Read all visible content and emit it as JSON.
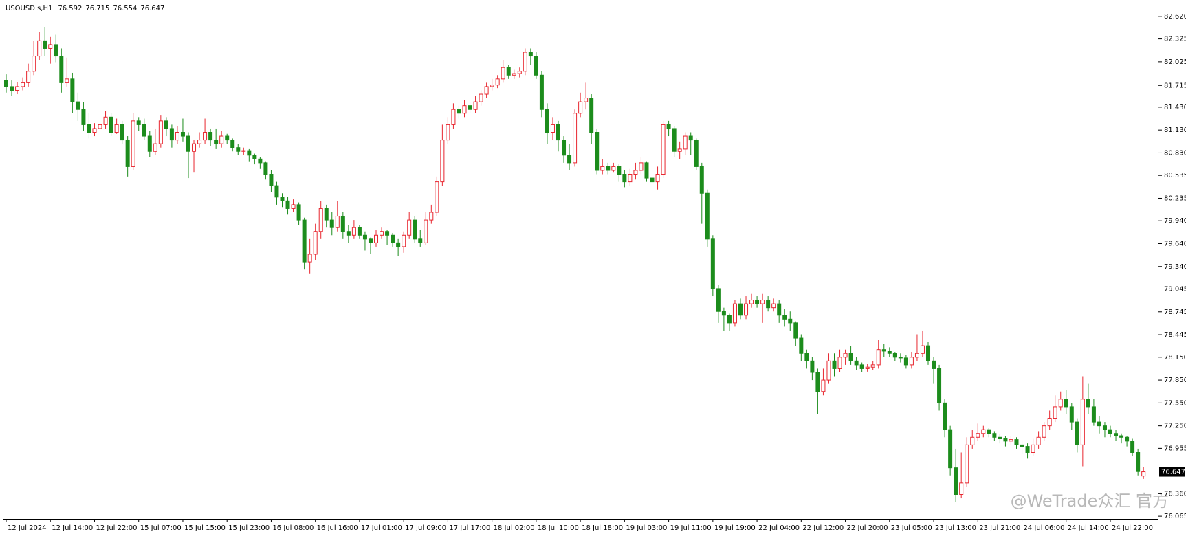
{
  "chart_data": {
    "type": "candlestick",
    "header": "USOUSD.s,H1",
    "watermark": "@WeTrade众汇 官方",
    "up_color": "#e8262f",
    "down_color": "#1c8c1c",
    "ylim": [
      76.03,
      82.79
    ],
    "yticks": [
      {
        "value": 82.62,
        "label": "82.620"
      },
      82.325,
      82.025,
      81.715,
      {
        "value": 81.43,
        "label": "81.430"
      },
      {
        "value": 81.13,
        "label": "81.130"
      },
      {
        "value": 80.83,
        "label": "80.830"
      },
      80.535,
      80.235,
      {
        "value": 79.94,
        "label": "79.940"
      },
      {
        "value": 79.64,
        "label": "79.640"
      },
      {
        "value": 79.34,
        "label": "79.340"
      },
      79.045,
      78.745,
      78.445,
      {
        "value": 78.15,
        "label": "78.150"
      },
      {
        "value": 77.85,
        "label": "77.850"
      },
      {
        "value": 77.55,
        "label": "77.550"
      },
      {
        "value": 77.25,
        "label": "77.250"
      },
      76.955,
      {
        "value": 76.36,
        "label": "76.360"
      },
      76.065
    ],
    "categories": [
      "12 Jul 2024",
      null,
      null,
      null,
      null,
      null,
      null,
      null,
      "12 Jul 14:00",
      null,
      null,
      null,
      null,
      null,
      null,
      null,
      "12 Jul 22:00",
      null,
      null,
      null,
      null,
      null,
      null,
      null,
      "15 Jul 07:00",
      null,
      null,
      null,
      null,
      null,
      null,
      null,
      "15 Jul 15:00",
      null,
      null,
      null,
      null,
      null,
      null,
      null,
      "15 Jul 23:00",
      null,
      null,
      null,
      null,
      null,
      null,
      null,
      "16 Jul 08:00",
      null,
      null,
      null,
      null,
      null,
      null,
      null,
      "16 Jul 16:00",
      null,
      null,
      null,
      null,
      null,
      null,
      null,
      "17 Jul 01:00",
      null,
      null,
      null,
      null,
      null,
      null,
      null,
      "17 Jul 09:00",
      null,
      null,
      null,
      null,
      null,
      null,
      null,
      "17 Jul 17:00",
      null,
      null,
      null,
      null,
      null,
      null,
      null,
      "18 Jul 02:00",
      null,
      null,
      null,
      null,
      null,
      null,
      null,
      "18 Jul 10:00",
      null,
      null,
      null,
      null,
      null,
      null,
      null,
      "18 Jul 18:00",
      null,
      null,
      null,
      null,
      null,
      null,
      null,
      "19 Jul 03:00",
      null,
      null,
      null,
      null,
      null,
      null,
      null,
      "19 Jul 11:00",
      null,
      null,
      null,
      null,
      null,
      null,
      null,
      "19 Jul 19:00",
      null,
      null,
      null,
      null,
      null,
      null,
      null,
      "22 Jul 04:00",
      null,
      null,
      null,
      null,
      null,
      null,
      null,
      "22 Jul 12:00",
      null,
      null,
      null,
      null,
      null,
      null,
      null,
      "22 Jul 20:00",
      null,
      null,
      null,
      null,
      null,
      null,
      null,
      "23 Jul 05:00",
      null,
      null,
      null,
      null,
      null,
      null,
      null,
      "23 Jul 13:00",
      null,
      null,
      null,
      null,
      null,
      null,
      null,
      "23 Jul 21:00",
      null,
      null,
      null,
      null,
      null,
      null,
      null,
      "24 Jul 06:00",
      null,
      null,
      null,
      null,
      null,
      null,
      null,
      "24 Jul 14:00",
      null,
      null,
      null,
      null,
      null,
      null,
      null,
      "24 Jul 22:00",
      null,
      null,
      null,
      null,
      null,
      null
    ],
    "candles": [
      [
        81.78,
        81.86,
        81.62,
        81.7
      ],
      [
        81.7,
        81.78,
        81.58,
        81.65
      ],
      [
        81.65,
        81.76,
        81.6,
        81.7
      ],
      [
        81.7,
        81.82,
        81.65,
        81.75
      ],
      [
        81.75,
        82.0,
        81.7,
        81.9
      ],
      [
        81.9,
        82.3,
        81.85,
        82.1
      ],
      [
        82.1,
        82.42,
        82.05,
        82.3
      ],
      [
        82.3,
        82.48,
        82.1,
        82.2
      ],
      [
        82.2,
        82.35,
        82.0,
        82.25
      ],
      [
        82.25,
        82.38,
        82.02,
        82.1
      ],
      [
        82.1,
        82.2,
        81.62,
        81.75
      ],
      [
        81.75,
        82.08,
        81.7,
        81.8
      ],
      [
        81.8,
        81.88,
        81.35,
        81.5
      ],
      [
        81.5,
        81.62,
        81.25,
        81.4
      ],
      [
        81.4,
        81.5,
        81.12,
        81.2
      ],
      [
        81.2,
        81.35,
        81.02,
        81.1
      ],
      [
        81.1,
        81.22,
        81.05,
        81.15
      ],
      [
        81.15,
        81.42,
        81.1,
        81.2
      ],
      [
        81.2,
        81.38,
        81.15,
        81.3
      ],
      [
        81.3,
        81.35,
        81.05,
        81.1
      ],
      [
        81.1,
        81.28,
        81.08,
        81.2
      ],
      [
        81.2,
        81.25,
        80.95,
        81.0
      ],
      [
        81.0,
        81.05,
        80.52,
        80.65
      ],
      [
        80.65,
        81.35,
        80.6,
        81.25
      ],
      [
        81.25,
        81.3,
        81.12,
        81.2
      ],
      [
        81.2,
        81.28,
        81.0,
        81.05
      ],
      [
        81.05,
        81.12,
        80.78,
        80.85
      ],
      [
        80.85,
        81.15,
        80.8,
        80.95
      ],
      [
        80.95,
        81.32,
        80.9,
        81.25
      ],
      [
        81.25,
        81.3,
        81.05,
        81.15
      ],
      [
        81.15,
        81.2,
        80.9,
        81.0
      ],
      [
        81.0,
        81.18,
        80.95,
        81.1
      ],
      [
        81.1,
        81.28,
        80.98,
        81.05
      ],
      [
        81.05,
        81.1,
        80.5,
        80.85
      ],
      [
        80.85,
        81.0,
        80.58,
        80.95
      ],
      [
        80.95,
        81.1,
        80.9,
        81.0
      ],
      [
        81.0,
        81.28,
        80.95,
        81.1
      ],
      [
        81.1,
        81.15,
        80.92,
        81.0
      ],
      [
        81.0,
        81.15,
        80.88,
        80.95
      ],
      [
        80.95,
        81.12,
        80.9,
        81.05
      ],
      [
        81.05,
        81.08,
        80.95,
        81.0
      ],
      [
        81.0,
        81.02,
        80.85,
        80.9
      ],
      [
        80.9,
        80.95,
        80.8,
        80.85
      ],
      [
        80.85,
        80.9,
        80.8,
        80.86
      ],
      [
        80.86,
        80.88,
        80.72,
        80.8
      ],
      [
        80.8,
        80.82,
        80.68,
        80.75
      ],
      [
        80.75,
        80.78,
        80.62,
        80.7
      ],
      [
        80.7,
        80.72,
        80.48,
        80.55
      ],
      [
        80.55,
        80.6,
        80.32,
        80.4
      ],
      [
        80.4,
        80.45,
        80.15,
        80.25
      ],
      [
        80.25,
        80.3,
        80.12,
        80.2
      ],
      [
        80.2,
        80.25,
        80.02,
        80.1
      ],
      [
        80.1,
        80.22,
        80.05,
        80.15
      ],
      [
        80.15,
        80.18,
        79.88,
        79.95
      ],
      [
        79.95,
        79.98,
        79.3,
        79.4
      ],
      [
        79.4,
        79.7,
        79.25,
        79.5
      ],
      [
        79.5,
        79.9,
        79.42,
        79.8
      ],
      [
        79.8,
        80.2,
        79.7,
        80.1
      ],
      [
        80.1,
        80.15,
        79.85,
        79.95
      ],
      [
        79.95,
        80.05,
        79.75,
        79.85
      ],
      [
        79.85,
        80.2,
        79.8,
        80.0
      ],
      [
        80.0,
        80.05,
        79.7,
        79.8
      ],
      [
        79.8,
        79.88,
        79.65,
        79.75
      ],
      [
        79.75,
        79.95,
        79.7,
        79.85
      ],
      [
        79.85,
        79.88,
        79.7,
        79.75
      ],
      [
        79.75,
        79.8,
        79.55,
        79.7
      ],
      [
        79.7,
        79.72,
        79.5,
        79.65
      ],
      [
        79.65,
        79.82,
        79.6,
        79.75
      ],
      [
        79.75,
        79.85,
        79.7,
        79.8
      ],
      [
        79.8,
        79.82,
        79.62,
        79.75
      ],
      [
        79.75,
        79.78,
        79.6,
        79.65
      ],
      [
        79.65,
        79.7,
        79.48,
        79.6
      ],
      [
        79.6,
        79.8,
        79.52,
        79.75
      ],
      [
        79.75,
        80.05,
        79.7,
        79.95
      ],
      [
        79.95,
        80.0,
        79.65,
        79.7
      ],
      [
        79.7,
        79.82,
        79.6,
        79.65
      ],
      [
        79.65,
        80.05,
        79.62,
        79.95
      ],
      [
        79.95,
        80.15,
        79.9,
        80.05
      ],
      [
        80.05,
        80.52,
        80.0,
        80.45
      ],
      [
        80.45,
        81.2,
        80.4,
        81.0
      ],
      [
        81.0,
        81.3,
        80.95,
        81.2
      ],
      [
        81.2,
        81.48,
        81.15,
        81.4
      ],
      [
        81.4,
        81.45,
        81.28,
        81.35
      ],
      [
        81.35,
        81.52,
        81.3,
        81.45
      ],
      [
        81.45,
        81.5,
        81.35,
        81.4
      ],
      [
        81.4,
        81.58,
        81.35,
        81.5
      ],
      [
        81.5,
        81.65,
        81.45,
        81.6
      ],
      [
        81.6,
        81.75,
        81.55,
        81.7
      ],
      [
        81.7,
        81.8,
        81.65,
        81.72
      ],
      [
        81.72,
        81.85,
        81.68,
        81.8
      ],
      [
        81.8,
        82.05,
        81.75,
        81.95
      ],
      [
        81.95,
        81.98,
        81.8,
        81.85
      ],
      [
        81.85,
        81.92,
        81.8,
        81.87
      ],
      [
        81.87,
        81.95,
        81.82,
        81.9
      ],
      [
        81.9,
        82.2,
        81.85,
        82.15
      ],
      [
        82.15,
        82.2,
        81.98,
        82.1
      ],
      [
        82.1,
        82.15,
        81.8,
        81.85
      ],
      [
        81.85,
        81.9,
        81.3,
        81.4
      ],
      [
        81.4,
        81.48,
        80.95,
        81.1
      ],
      [
        81.1,
        81.3,
        81.0,
        81.2
      ],
      [
        81.2,
        81.25,
        80.85,
        81.0
      ],
      [
        81.0,
        81.05,
        80.7,
        80.8
      ],
      [
        80.8,
        80.95,
        80.6,
        80.7
      ],
      [
        80.7,
        81.4,
        80.65,
        81.35
      ],
      [
        81.35,
        81.62,
        81.3,
        81.5
      ],
      [
        81.5,
        81.75,
        81.4,
        81.55
      ],
      [
        81.55,
        81.6,
        80.95,
        81.1
      ],
      [
        81.1,
        81.15,
        80.55,
        80.6
      ],
      [
        80.6,
        80.75,
        80.55,
        80.65
      ],
      [
        80.65,
        80.7,
        80.55,
        80.6
      ],
      [
        80.6,
        80.7,
        80.58,
        80.65
      ],
      [
        80.65,
        80.68,
        80.45,
        80.55
      ],
      [
        80.55,
        80.6,
        80.38,
        80.45
      ],
      [
        80.45,
        80.62,
        80.4,
        80.55
      ],
      [
        80.55,
        80.7,
        80.48,
        80.6
      ],
      [
        80.6,
        80.78,
        80.55,
        80.7
      ],
      [
        80.7,
        80.72,
        80.45,
        80.5
      ],
      [
        80.5,
        80.58,
        80.38,
        80.45
      ],
      [
        80.45,
        80.65,
        80.35,
        80.55
      ],
      [
        80.55,
        81.25,
        80.5,
        81.2
      ],
      [
        81.2,
        81.25,
        81.05,
        81.15
      ],
      [
        81.15,
        81.18,
        80.78,
        80.85
      ],
      [
        80.85,
        80.98,
        80.75,
        80.88
      ],
      [
        80.88,
        81.1,
        80.8,
        81.05
      ],
      [
        81.05,
        81.1,
        80.8,
        81.0
      ],
      [
        81.0,
        81.02,
        80.6,
        80.65
      ],
      [
        80.65,
        80.7,
        79.9,
        80.3
      ],
      [
        80.3,
        80.35,
        79.6,
        79.7
      ],
      [
        79.7,
        79.75,
        78.95,
        79.05
      ],
      [
        79.05,
        79.1,
        78.6,
        78.75
      ],
      [
        78.75,
        78.8,
        78.5,
        78.7
      ],
      [
        78.7,
        78.72,
        78.5,
        78.6
      ],
      [
        78.6,
        78.9,
        78.55,
        78.85
      ],
      [
        78.85,
        78.92,
        78.65,
        78.7
      ],
      [
        78.7,
        78.95,
        78.65,
        78.85
      ],
      [
        78.85,
        78.98,
        78.8,
        78.9
      ],
      [
        78.9,
        78.95,
        78.8,
        78.85
      ],
      [
        78.85,
        78.98,
        78.6,
        78.9
      ],
      [
        78.9,
        78.95,
        78.75,
        78.8
      ],
      [
        78.8,
        78.92,
        78.75,
        78.85
      ],
      [
        78.85,
        78.9,
        78.6,
        78.7
      ],
      [
        78.7,
        78.78,
        78.55,
        78.65
      ],
      [
        78.65,
        78.75,
        78.5,
        78.6
      ],
      [
        78.6,
        78.62,
        78.3,
        78.4
      ],
      [
        78.4,
        78.45,
        78.1,
        78.2
      ],
      [
        78.2,
        78.25,
        78.0,
        78.1
      ],
      [
        78.1,
        78.15,
        77.85,
        77.95
      ],
      [
        77.95,
        78.0,
        77.4,
        77.7
      ],
      [
        77.7,
        78.0,
        77.65,
        77.85
      ],
      [
        77.85,
        78.2,
        77.8,
        78.1
      ],
      [
        78.1,
        78.2,
        77.9,
        78.0
      ],
      [
        78.0,
        78.25,
        77.95,
        78.15
      ],
      [
        78.15,
        78.25,
        78.05,
        78.2
      ],
      [
        78.2,
        78.3,
        78.05,
        78.1
      ],
      [
        78.1,
        78.15,
        77.98,
        78.05
      ],
      [
        78.05,
        78.08,
        77.95,
        78.0
      ],
      [
        78.0,
        78.06,
        77.96,
        78.02
      ],
      [
        78.02,
        78.1,
        77.98,
        78.05
      ],
      [
        78.05,
        78.38,
        78.0,
        78.25
      ],
      [
        78.25,
        78.32,
        78.15,
        78.23
      ],
      [
        78.23,
        78.28,
        78.15,
        78.2
      ],
      [
        78.2,
        78.22,
        78.1,
        78.15
      ],
      [
        78.15,
        78.2,
        78.08,
        78.14
      ],
      [
        78.14,
        78.18,
        78.0,
        78.05
      ],
      [
        78.05,
        78.22,
        78.0,
        78.15
      ],
      [
        78.15,
        78.45,
        78.1,
        78.2
      ],
      [
        78.2,
        78.5,
        78.15,
        78.3
      ],
      [
        78.3,
        78.35,
        78.05,
        78.1
      ],
      [
        78.1,
        78.15,
        77.8,
        78.0
      ],
      [
        78.0,
        78.05,
        77.45,
        77.55
      ],
      [
        77.55,
        77.6,
        77.1,
        77.2
      ],
      [
        77.2,
        77.25,
        76.6,
        76.7
      ],
      [
        76.7,
        76.95,
        76.25,
        76.35
      ],
      [
        76.35,
        76.9,
        76.3,
        76.5
      ],
      [
        76.5,
        77.1,
        76.45,
        77.0
      ],
      [
        77.0,
        77.2,
        76.95,
        77.1
      ],
      [
        77.1,
        77.28,
        77.05,
        77.15
      ],
      [
        77.15,
        77.25,
        77.1,
        77.2
      ],
      [
        77.2,
        77.22,
        77.1,
        77.15
      ],
      [
        77.15,
        77.18,
        77.05,
        77.1
      ],
      [
        77.1,
        77.14,
        77.02,
        77.08
      ],
      [
        77.08,
        77.12,
        76.98,
        77.05
      ],
      [
        77.05,
        77.12,
        77.0,
        77.07
      ],
      [
        77.07,
        77.1,
        76.95,
        77.0
      ],
      [
        77.0,
        77.05,
        76.88,
        76.98
      ],
      [
        76.98,
        77.02,
        76.82,
        76.9
      ],
      [
        76.9,
        77.08,
        76.85,
        77.0
      ],
      [
        77.0,
        77.18,
        76.95,
        77.1
      ],
      [
        77.1,
        77.3,
        77.05,
        77.25
      ],
      [
        77.25,
        77.45,
        77.2,
        77.35
      ],
      [
        77.35,
        77.65,
        77.3,
        77.5
      ],
      [
        77.5,
        77.7,
        77.45,
        77.6
      ],
      [
        77.6,
        77.72,
        77.4,
        77.5
      ],
      [
        77.5,
        77.55,
        77.2,
        77.3
      ],
      [
        77.3,
        77.35,
        76.9,
        77.0
      ],
      [
        77.0,
        77.9,
        76.72,
        77.6
      ],
      [
        77.6,
        77.8,
        77.4,
        77.5
      ],
      [
        77.5,
        77.6,
        77.25,
        77.3
      ],
      [
        77.3,
        77.38,
        77.15,
        77.25
      ],
      [
        77.25,
        77.3,
        77.1,
        77.2
      ],
      [
        77.2,
        77.25,
        77.1,
        77.15
      ],
      [
        77.15,
        77.2,
        77.05,
        77.12
      ],
      [
        77.12,
        77.15,
        77.02,
        77.1
      ],
      [
        77.1,
        77.12,
        76.98,
        77.05
      ],
      [
        77.05,
        77.08,
        76.85,
        76.9
      ],
      [
        76.9,
        76.95,
        76.6,
        76.65
      ],
      [
        76.592,
        76.715,
        76.554,
        76.647
      ]
    ]
  }
}
